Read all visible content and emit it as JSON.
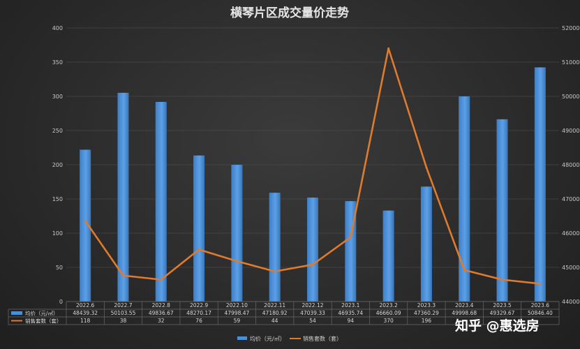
{
  "chart_data": {
    "type": "bar",
    "title": "横琴片区成交量价走势",
    "categories": [
      "2022.6",
      "2022.7",
      "2022.8",
      "2022.9",
      "2022.10",
      "2022.11",
      "2022.12",
      "2023.1",
      "2023.2",
      "2023.3",
      "2023.4",
      "2023.5",
      "2023.6"
    ],
    "series": [
      {
        "name": "均价（元/㎡）",
        "type": "bar",
        "axis": "right",
        "color": "#4a90d9",
        "values": [
          48439.32,
          50103.55,
          49836.67,
          48270.17,
          47998.47,
          47180.92,
          47039.33,
          46935.74,
          46660.09,
          47360.29,
          49998.68,
          49329.67,
          50846.4
        ],
        "labels": [
          "48439.32",
          "50103.55",
          "49836.67",
          "48270.17",
          "47998.47",
          "47180.92",
          "47039.33",
          "46935.74",
          "46660.09",
          "47360.29",
          "49998.68",
          "49329.67",
          "50846.40"
        ]
      },
      {
        "name": "销售套数（套）",
        "type": "line",
        "axis": "left",
        "color": "#e07a2c",
        "values": [
          118,
          38,
          32,
          76,
          59,
          44,
          54,
          94,
          370,
          196,
          46,
          32,
          26
        ],
        "labels": [
          "118",
          "38",
          "32",
          "76",
          "59",
          "44",
          "54",
          "94",
          "370",
          "196",
          "",
          "",
          ""
        ]
      }
    ],
    "ylim_left": [
      0,
      400
    ],
    "yticks_left": [
      "0",
      "50",
      "100",
      "150",
      "200",
      "250",
      "300",
      "350",
      "400"
    ],
    "ylim_right": [
      44000,
      52000
    ],
    "yticks_right": [
      "44000",
      "45000",
      "46000",
      "47000",
      "48000",
      "49000",
      "50000",
      "51000",
      "52000"
    ],
    "grid": true,
    "legend_position": "bottom"
  },
  "watermark": "知乎 @惠选房"
}
